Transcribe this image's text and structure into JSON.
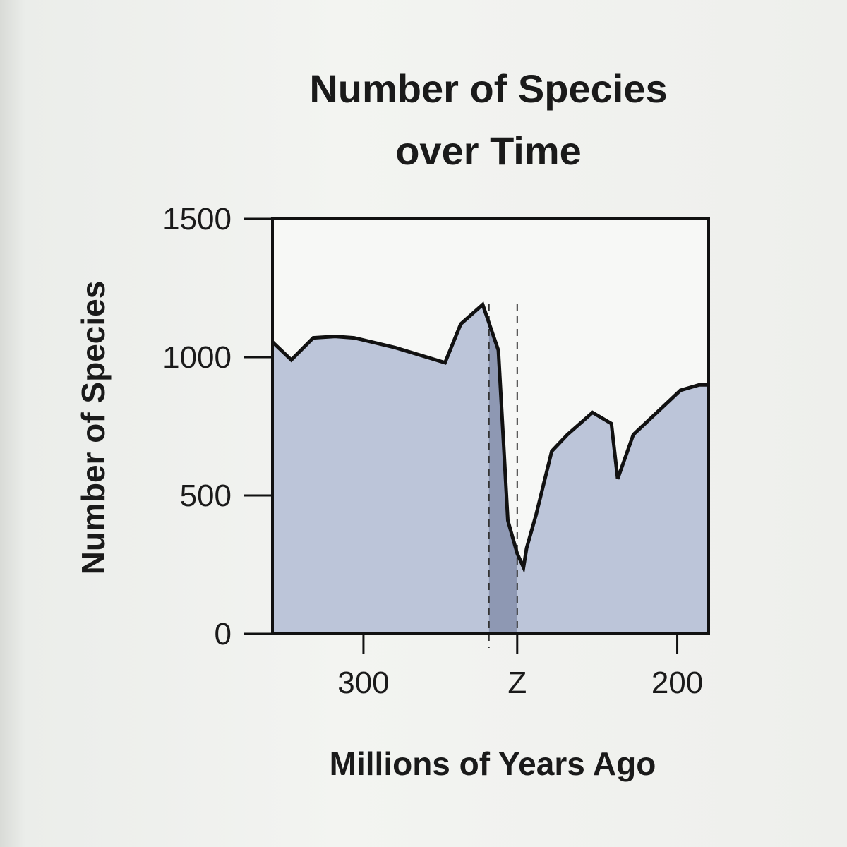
{
  "chart_data": {
    "type": "area",
    "title_lines": [
      "Number of Species",
      "over Time"
    ],
    "xlabel": "Millions of Years Ago",
    "ylabel": "Number of Species",
    "xlim": [
      329,
      190
    ],
    "ylim": [
      0,
      1500
    ],
    "y_ticks": [
      0,
      500,
      1000,
      1500
    ],
    "x_ticks": [
      {
        "label": "300",
        "x": 300
      },
      {
        "label": "Z",
        "x": 251
      },
      {
        "label": "200",
        "x": 200
      }
    ],
    "highlight_band": {
      "from": 260,
      "to": 251
    },
    "series": [
      {
        "x": [
          329,
          323,
          316,
          309,
          303,
          290,
          274,
          269,
          262,
          257,
          254,
          251,
          249,
          248,
          245,
          240,
          235,
          227,
          221,
          219,
          214,
          199,
          193,
          190
        ],
        "values": [
          1055,
          990,
          1070,
          1075,
          1070,
          1035,
          980,
          1120,
          1190,
          1025,
          410,
          290,
          240,
          310,
          430,
          660,
          720,
          800,
          760,
          560,
          720,
          880,
          900,
          900
        ]
      }
    ]
  }
}
